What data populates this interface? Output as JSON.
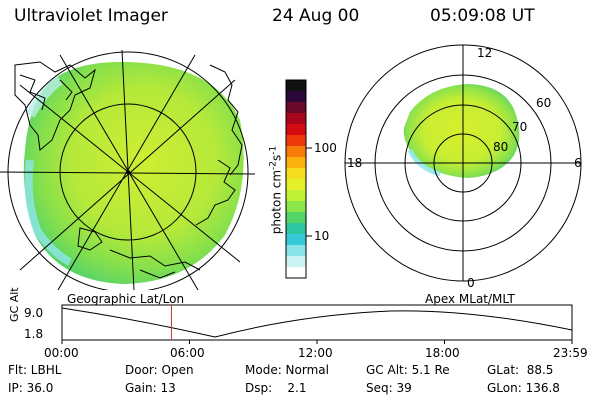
{
  "header": {
    "instrument": "Ultraviolet Imager",
    "date": "24 Aug 00",
    "time": "05:09:08 UT"
  },
  "colorbar": {
    "label": "photon cm",
    "ticks": [
      "100",
      "10"
    ],
    "colors": [
      "#111111",
      "#2b0838",
      "#6a0a2a",
      "#a8061e",
      "#d40c12",
      "#ee3a0b",
      "#f77b08",
      "#fbb110",
      "#f5de20",
      "#e4f12a",
      "#bff235",
      "#8ae64a",
      "#55d46a",
      "#2ec6a0",
      "#37c9d8",
      "#8be3ea",
      "#cdf2f4",
      "#ffffff"
    ]
  },
  "left_map": {
    "label": "Geographic Lat/Lon"
  },
  "polar_plot": {
    "label": "Apex MLat/MLT",
    "mlt_labels": {
      "top": "12",
      "left": "18",
      "right": "6",
      "bottom": "0"
    },
    "lat_labels": [
      "60",
      "70",
      "80"
    ]
  },
  "timeline": {
    "ylabel": "GC Alt",
    "yticks": [
      "9.0",
      "1.8"
    ],
    "xticks": [
      "00:00",
      "06:00",
      "12:00",
      "18:00",
      "23:59"
    ],
    "cursor_time_hours": 5.15
  },
  "status": {
    "row1": {
      "flt": "Flt: LBHL",
      "door": "Door: Open",
      "mode": "Mode: Normal",
      "gcalt": "GC Alt: 5.1 Re",
      "glat": "GLat:  88.5"
    },
    "row2": {
      "ip": "IP: 36.0",
      "gain": "Gain: 13",
      "dsp": "Dsp:    2.1",
      "seq": "Seq: 39",
      "glon": "GLon: 136.8"
    }
  }
}
